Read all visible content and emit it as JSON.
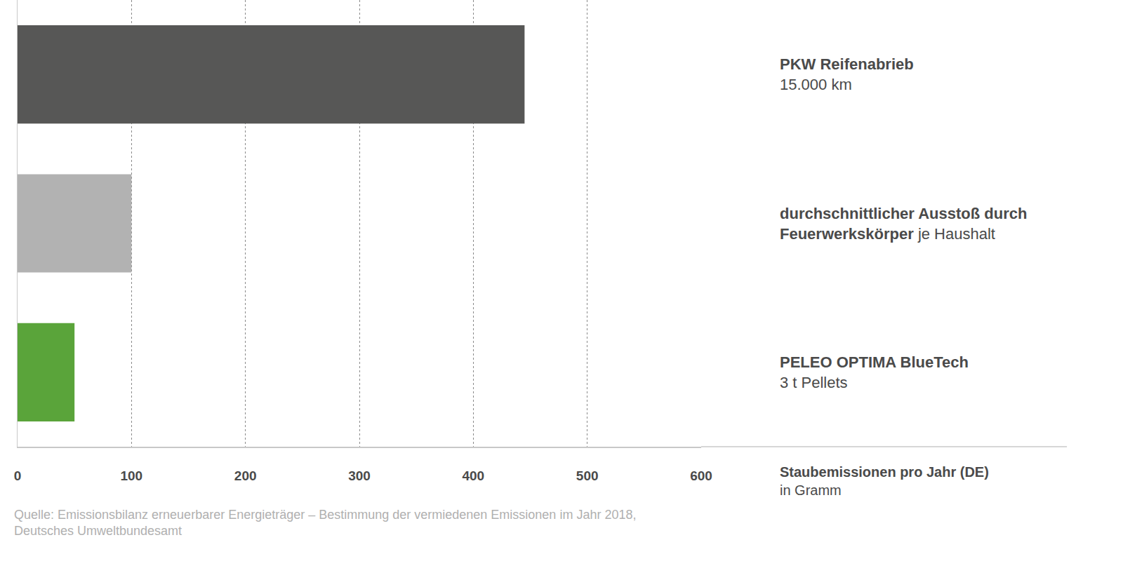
{
  "chart_data": {
    "type": "bar",
    "orientation": "horizontal",
    "categories": [
      "PKW Reifenabrieb",
      "durchschnittlicher Ausstoß durch Feuerwerkskörper",
      "PELEO OPTIMA BlueTech"
    ],
    "sublabels": [
      "15.000 km",
      "je Haushalt",
      "3 t Pellets"
    ],
    "values": [
      445,
      100,
      50
    ],
    "colors": [
      "#575756",
      "#b2b2b2",
      "#5aa43a"
    ],
    "xlabel": "Staubemissionen pro Jahr (DE)",
    "xlabel_sub": "in Gramm",
    "xlim": [
      0,
      600
    ],
    "xticks": [
      0,
      100,
      200,
      300,
      400,
      500,
      600
    ],
    "grid": true,
    "tick_labels": "x",
    "source": "Quelle: Emissionsbilanz erneuerbarer Energieträger – Bestimmung der vermiedenen Emissionen im Jahr 2018, Deutsches Umweltbundesamt"
  }
}
